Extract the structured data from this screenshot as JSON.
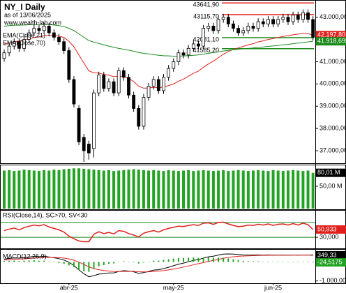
{
  "chart_data": [
    {
      "type": "candlestick",
      "title": "NY_I Daily",
      "subtitle": "as of 13/06/2025",
      "annotations": [
        "www.wealth-lab.com"
      ],
      "categories": [
        null,
        null,
        null,
        null,
        null,
        null,
        null,
        null,
        null,
        null,
        null,
        null,
        null,
        "abr-25",
        null,
        null,
        null,
        null,
        null,
        null,
        null,
        null,
        null,
        null,
        null,
        null,
        null,
        null,
        null,
        null,
        null,
        null,
        null,
        null,
        "may-25",
        null,
        null,
        null,
        null,
        null,
        null,
        null,
        null,
        null,
        null,
        null,
        null,
        null,
        null,
        null,
        null,
        null,
        null,
        null,
        "jun-25",
        null,
        null,
        null,
        null,
        null,
        null,
        null,
        null
      ],
      "open": [
        41150,
        41400,
        41700,
        41900,
        41600,
        42000,
        42300,
        42500,
        42400,
        42600,
        42300,
        42100,
        41900,
        41500,
        40200,
        38900,
        37600,
        37300,
        37100,
        39600,
        40400,
        39800,
        40100,
        39600,
        40600,
        40300,
        39500,
        38900,
        38100,
        39400,
        39900,
        40200,
        39700,
        40300,
        40700,
        41000,
        41400,
        41300,
        41600,
        41800,
        41700,
        42500,
        42600,
        42400,
        42900,
        43000,
        42700,
        42500,
        42300,
        42400,
        42600,
        42500,
        42800,
        42700,
        42900,
        42700,
        42900,
        43000,
        42800,
        43100,
        42900,
        43200,
        42900
      ],
      "high": [
        41550,
        41850,
        42050,
        42050,
        42150,
        42450,
        42650,
        42650,
        42750,
        42750,
        42450,
        42250,
        42050,
        41650,
        40350,
        39050,
        37750,
        37450,
        39750,
        40550,
        40550,
        40250,
        40250,
        40750,
        40750,
        40450,
        39650,
        39050,
        39550,
        40050,
        40350,
        40350,
        40450,
        40850,
        41150,
        41550,
        41550,
        41750,
        41950,
        41950,
        42650,
        42750,
        42750,
        43050,
        43150,
        43150,
        42850,
        42650,
        42550,
        42750,
        42750,
        42950,
        42950,
        43050,
        43050,
        43050,
        43150,
        43150,
        43250,
        43250,
        43350,
        43350,
        43050
      ],
      "low": [
        41000,
        41250,
        41550,
        41450,
        41450,
        41850,
        42150,
        42250,
        42250,
        42150,
        41950,
        41750,
        41350,
        40050,
        38950,
        37250,
        36500,
        36600,
        36700,
        39450,
        39650,
        39650,
        39450,
        39450,
        40150,
        39350,
        38750,
        37950,
        37950,
        39250,
        39750,
        39550,
        39550,
        40150,
        40550,
        40850,
        41150,
        41150,
        41450,
        41550,
        41550,
        42350,
        42250,
        42250,
        42750,
        42550,
        42350,
        42150,
        42150,
        42250,
        42350,
        42350,
        42550,
        42550,
        42550,
        42550,
        42750,
        42650,
        42650,
        42750,
        42750,
        42750,
        41950
      ],
      "close": [
        41400,
        41700,
        41900,
        41600,
        42000,
        42300,
        42500,
        42400,
        42600,
        42300,
        42100,
        41900,
        41500,
        40200,
        39100,
        37400,
        37000,
        36900,
        39600,
        40400,
        39800,
        40100,
        39600,
        40600,
        40300,
        39500,
        38900,
        38100,
        39400,
        39900,
        40200,
        39700,
        40300,
        40700,
        41000,
        41400,
        41300,
        41600,
        41800,
        41700,
        42500,
        42600,
        42400,
        42900,
        43000,
        42700,
        42500,
        42300,
        42400,
        42600,
        42500,
        42800,
        42700,
        42900,
        42700,
        42900,
        43000,
        42800,
        43100,
        42900,
        43200,
        42900,
        42100
      ],
      "series": [
        {
          "name": "EMA(Close,21)",
          "color": "#e0201c",
          "last_label": "42.197,80",
          "values": [
            41800,
            41840,
            41890,
            41920,
            41970,
            42030,
            42090,
            42120,
            42170,
            42180,
            42170,
            42150,
            42090,
            41920,
            41670,
            41300,
            40940,
            40590,
            40500,
            40490,
            40430,
            40400,
            40330,
            40350,
            40340,
            40250,
            40110,
            39900,
            39810,
            39820,
            39850,
            39830,
            39860,
            39930,
            40000,
            40120,
            40220,
            40350,
            40480,
            40580,
            40750,
            40900,
            41030,
            41180,
            41340,
            41460,
            41550,
            41620,
            41690,
            41760,
            41810,
            41890,
            41940,
            42000,
            42040,
            42090,
            42140,
            42170,
            42210,
            42240,
            42280,
            42260,
            42197.8
          ]
        },
        {
          "name": "EMA(Close,70)",
          "color": "#1a8a1a",
          "last_label": "41.918,695",
          "values": [
            42600,
            42620,
            42640,
            42640,
            42650,
            42660,
            42670,
            42670,
            42680,
            42670,
            42650,
            42620,
            42580,
            42500,
            42400,
            42250,
            42100,
            41950,
            41880,
            41820,
            41760,
            41700,
            41650,
            41600,
            41560,
            41520,
            41470,
            41420,
            41380,
            41350,
            41320,
            41290,
            41270,
            41260,
            41250,
            41250,
            41260,
            41270,
            41290,
            41310,
            41340,
            41380,
            41410,
            41440,
            41480,
            41510,
            41540,
            41560,
            41580,
            41600,
            41620,
            41640,
            41660,
            41690,
            41710,
            41730,
            41760,
            41780,
            41810,
            41840,
            41860,
            41890,
            41918.695
          ]
        }
      ],
      "levels": [
        {
          "value": 43641.9,
          "label": "43641,90",
          "color": "#e0201c"
        },
        {
          "value": 43115.7,
          "label": "43115,70",
          "color": "#e0201c"
        },
        {
          "value": 42081.1,
          "label": "42081,10",
          "color": "#1a8a1a"
        },
        {
          "value": 41585.2,
          "label": "41585,20",
          "color": "#1a8a1a"
        }
      ],
      "ylim": [
        36500,
        43680
      ],
      "yticks": [
        {
          "value": 43000,
          "label": "43.000,00"
        },
        {
          "value": 41000,
          "label": "41.000,00"
        },
        {
          "value": 40000,
          "label": "40.000,00"
        },
        {
          "value": 39000,
          "label": "39.000,00"
        },
        {
          "value": 38000,
          "label": "38.000,00"
        },
        {
          "value": 37000,
          "label": "37.000,00"
        }
      ]
    },
    {
      "type": "bar",
      "color": "#23a323",
      "last_label": "80,01 M",
      "values": [
        85,
        86,
        84,
        85,
        87,
        86,
        85,
        84,
        86,
        85,
        87,
        86,
        88,
        89,
        90,
        90,
        89,
        88,
        87,
        86,
        85,
        86,
        84,
        85,
        86,
        87,
        88,
        87,
        86,
        85,
        86,
        85,
        84,
        86,
        85,
        84,
        85,
        86,
        84,
        85,
        86,
        85,
        84,
        85,
        86,
        84,
        85,
        86,
        85,
        84,
        85,
        86,
        85,
        84,
        86,
        85,
        84,
        85,
        86,
        85,
        84,
        85,
        80.01
      ],
      "ylim": [
        0,
        92
      ],
      "yticks": [
        {
          "value": 50,
          "label": "50,00 M"
        }
      ]
    },
    {
      "type": "line",
      "title": "RSI(Close,14), SC>70, SV<30",
      "levels": [
        70,
        30
      ],
      "level_color": "#1a8a1a",
      "series": [
        {
          "color": "#e0201c",
          "last_label": "50,933",
          "values": [
            48,
            52,
            55,
            50,
            56,
            60,
            63,
            61,
            64,
            58,
            54,
            50,
            44,
            33,
            26,
            20,
            18,
            18,
            38,
            45,
            40,
            43,
            39,
            48,
            46,
            40,
            36,
            31,
            41,
            45,
            48,
            44,
            50,
            54,
            57,
            60,
            59,
            62,
            64,
            62,
            68,
            69,
            65,
            70,
            71,
            66,
            62,
            59,
            60,
            63,
            62,
            65,
            63,
            66,
            62,
            65,
            66,
            63,
            67,
            63,
            68,
            64,
            50.933
          ]
        }
      ],
      "ylim": [
        0,
        100
      ],
      "yticks": [
        {
          "value": 30,
          "label": "30,000"
        }
      ]
    },
    {
      "type": "macd",
      "title": "MACD(12,26,9)",
      "series": [
        {
          "color": "#000000",
          "last_label": "349,33",
          "values": [
            150,
            180,
            210,
            200,
            230,
            260,
            290,
            280,
            300,
            260,
            220,
            170,
            100,
            -20,
            -190,
            -420,
            -620,
            -780,
            -720,
            -640,
            -620,
            -580,
            -580,
            -500,
            -460,
            -480,
            -520,
            -600,
            -560,
            -500,
            -430,
            -410,
            -350,
            -280,
            -200,
            -120,
            -60,
            10,
            80,
            120,
            200,
            270,
            300,
            360,
            410,
            420,
            410,
            390,
            370,
            360,
            360,
            370,
            360,
            370,
            360,
            360,
            365,
            355,
            365,
            355,
            365,
            360,
            349.33
          ]
        },
        {
          "color": "#e0201c",
          "values": [
            100,
            115,
            135,
            150,
            165,
            185,
            205,
            220,
            235,
            240,
            235,
            225,
            205,
            160,
            90,
            -10,
            -130,
            -260,
            -350,
            -410,
            -450,
            -480,
            -500,
            -500,
            -495,
            -490,
            -495,
            -515,
            -525,
            -520,
            -500,
            -480,
            -455,
            -420,
            -375,
            -325,
            -270,
            -210,
            -150,
            -95,
            -35,
            25,
            80,
            135,
            190,
            235,
            270,
            295,
            310,
            320,
            330,
            340,
            345,
            350,
            352,
            354,
            357,
            357,
            359,
            359,
            361,
            361,
            373.85
          ]
        },
        {
          "type": "bar",
          "color": "#23a323",
          "last_label": "-24,5175",
          "values": [
            50,
            65,
            75,
            50,
            65,
            75,
            85,
            60,
            65,
            20,
            -15,
            -55,
            -105,
            -180,
            -280,
            -410,
            -490,
            -520,
            -370,
            -230,
            -170,
            -100,
            -80,
            0,
            35,
            10,
            -25,
            -85,
            -35,
            20,
            70,
            70,
            105,
            140,
            175,
            205,
            210,
            220,
            230,
            215,
            235,
            245,
            220,
            225,
            220,
            185,
            140,
            95,
            60,
            40,
            30,
            30,
            15,
            20,
            8,
            6,
            8,
            -2,
            6,
            -4,
            4,
            -1,
            -24.5175
          ]
        }
      ],
      "ylim": [
        -1120,
        640
      ],
      "yticks": [
        {
          "value": -1000,
          "label": "-1.000,00"
        }
      ]
    }
  ]
}
